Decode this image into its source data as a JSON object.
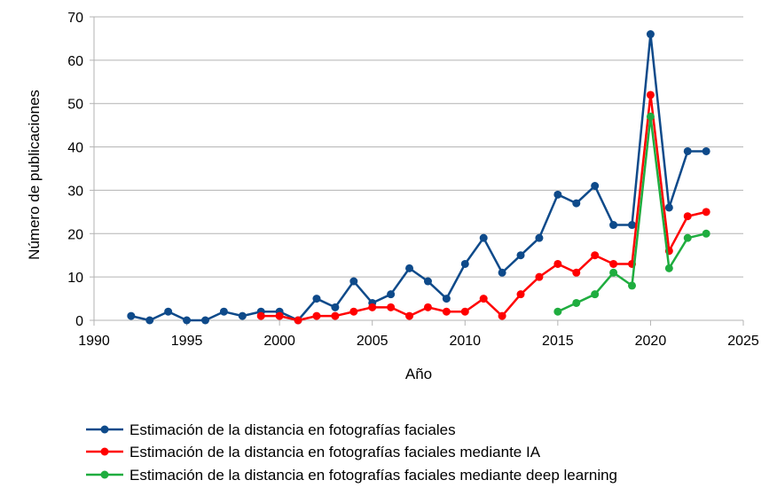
{
  "chart_data": {
    "type": "line",
    "title": "",
    "xlabel": "Año",
    "ylabel": "Número de publicaciones",
    "xlim": [
      1990,
      2025
    ],
    "ylim": [
      0,
      70
    ],
    "xticks": [
      1990,
      1995,
      2000,
      2005,
      2010,
      2015,
      2020,
      2025
    ],
    "yticks": [
      0,
      10,
      20,
      30,
      40,
      50,
      60,
      70
    ],
    "grid": "horizontal",
    "legend_position": "bottom",
    "series": [
      {
        "name": "Estimación de la distancia en fotografías faciales",
        "color": "#0e4a8a",
        "x": [
          1992,
          1993,
          1994,
          1995,
          1996,
          1997,
          1998,
          1999,
          2000,
          2001,
          2002,
          2003,
          2004,
          2005,
          2006,
          2007,
          2008,
          2009,
          2010,
          2011,
          2012,
          2013,
          2014,
          2015,
          2016,
          2017,
          2018,
          2019,
          2020,
          2021,
          2022,
          2023
        ],
        "y": [
          1,
          0,
          2,
          0,
          0,
          2,
          1,
          2,
          2,
          0,
          5,
          3,
          9,
          4,
          6,
          12,
          9,
          5,
          13,
          19,
          11,
          15,
          19,
          29,
          27,
          31,
          22,
          22,
          66,
          26,
          39,
          39
        ]
      },
      {
        "name": "Estimación de la distancia en fotografías faciales mediante IA",
        "color": "#ff0000",
        "x": [
          1999,
          2000,
          2001,
          2002,
          2003,
          2004,
          2005,
          2006,
          2007,
          2008,
          2009,
          2010,
          2011,
          2012,
          2013,
          2014,
          2015,
          2016,
          2017,
          2018,
          2019,
          2020,
          2021,
          2022,
          2023
        ],
        "y": [
          1,
          1,
          0,
          1,
          1,
          2,
          3,
          3,
          1,
          3,
          2,
          2,
          5,
          1,
          6,
          10,
          13,
          11,
          15,
          13,
          13,
          52,
          16,
          24,
          25
        ]
      },
      {
        "name": "Estimación de la distancia en fotografías faciales mediante deep learning",
        "color": "#1fad3f",
        "x": [
          2015,
          2016,
          2017,
          2018,
          2019,
          2020,
          2021,
          2022,
          2023
        ],
        "y": [
          2,
          4,
          6,
          11,
          8,
          47,
          12,
          19,
          20
        ]
      }
    ]
  }
}
